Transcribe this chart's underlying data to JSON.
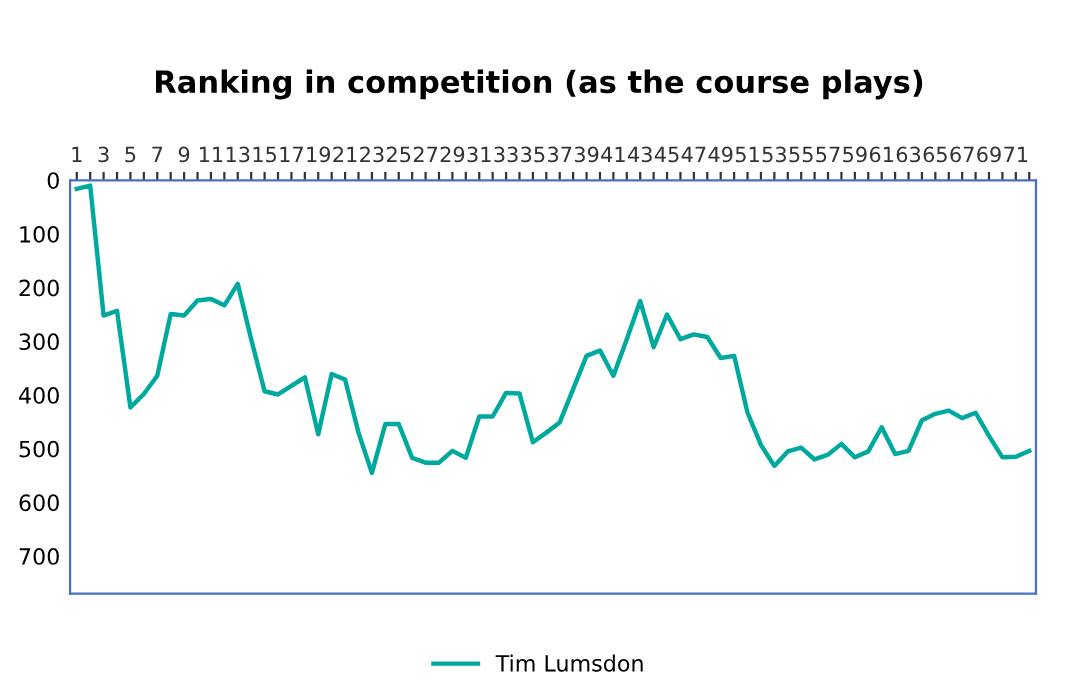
{
  "chart_data": {
    "type": "line",
    "title": "Ranking in competition (as the course plays)",
    "categories": [
      "1",
      null,
      "3",
      null,
      "5",
      null,
      "7",
      null,
      "9",
      null,
      "11",
      null,
      "13",
      null,
      "15",
      null,
      "17",
      null,
      "19",
      null,
      "21",
      null,
      "23",
      null,
      "25",
      null,
      "27",
      null,
      "29",
      null,
      "31",
      null,
      "33",
      null,
      "35",
      null,
      "37",
      null,
      "39",
      null,
      "41",
      null,
      "43",
      null,
      "45",
      null,
      "47",
      null,
      "49",
      null,
      "51",
      null,
      "53",
      null,
      "55",
      null,
      "57",
      null,
      "59",
      null,
      "61",
      null,
      "63",
      null,
      "65",
      null,
      "67",
      null,
      "69",
      null,
      "71",
      null
    ],
    "series": [
      {
        "name": "Tim Lumsdon",
        "color": "#00a99d",
        "values": [
          16,
          10,
          252,
          243,
          423,
          398,
          364,
          249,
          252,
          224,
          221,
          233,
          193,
          296,
          393,
          399,
          383,
          367,
          473,
          361,
          371,
          470,
          545,
          454,
          454,
          517,
          526,
          526,
          504,
          517,
          440,
          440,
          396,
          397,
          488,
          470,
          451,
          389,
          327,
          317,
          364,
          296,
          225,
          311,
          250,
          296,
          287,
          292,
          331,
          327,
          433,
          493,
          532,
          505,
          498,
          520,
          511,
          491,
          516,
          505,
          460,
          510,
          504,
          447,
          435,
          429,
          443,
          433,
          476,
          516,
          515,
          504
        ]
      }
    ],
    "ylim": [
      770,
      0
    ],
    "yticks": [
      0,
      100,
      200,
      300,
      400,
      500,
      600,
      700
    ],
    "grid": false,
    "legend": "bottom",
    "marker": "none",
    "line_style": "solid"
  }
}
